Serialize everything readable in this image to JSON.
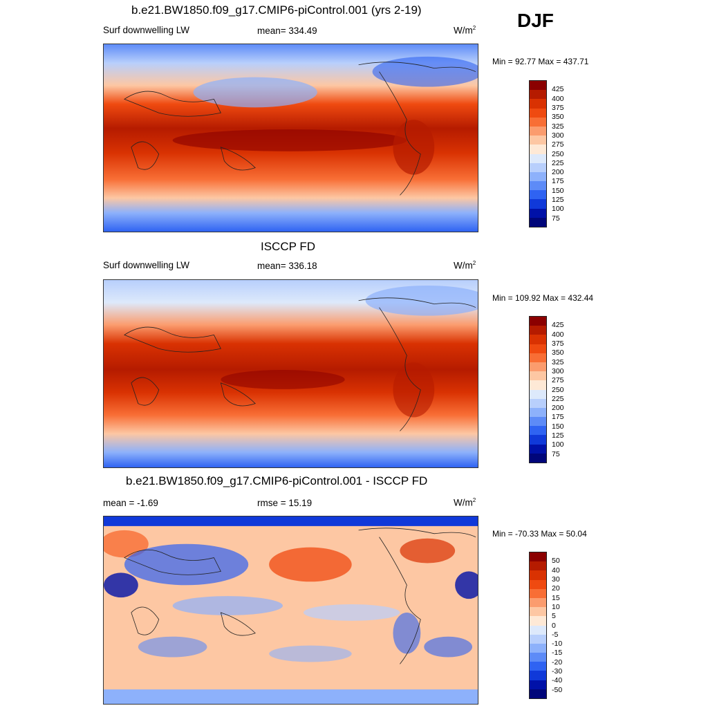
{
  "season": "DJF",
  "panels": [
    {
      "id": "model",
      "title": "b.e21.BW1850.f09_g17.CMIP6-piControl.001 (yrs 2-19)",
      "left_label": "Surf downwelling LW",
      "center_label": "mean= 334.49",
      "units": "W/m",
      "units_exp": "2",
      "minmax": "Min =  92.77 Max = 437.71",
      "colorbar": {
        "labels": [
          "425",
          "400",
          "375",
          "350",
          "325",
          "300",
          "275",
          "250",
          "225",
          "200",
          "175",
          "150",
          "125",
          "100",
          "75"
        ],
        "colors": [
          "#8b0000",
          "#b51b00",
          "#d93202",
          "#ef4a10",
          "#f86e35",
          "#fb9c6e",
          "#fdc7a3",
          "#fee9d6",
          "#dde9fb",
          "#b8cffc",
          "#8db1fb",
          "#5d8bf7",
          "#2f63f2",
          "#1039d9",
          "#0011a8",
          "#00067a"
        ]
      }
    },
    {
      "id": "obs",
      "title": "ISCCP FD",
      "left_label": "Surf downwelling LW",
      "center_label": "mean= 336.18",
      "units": "W/m",
      "units_exp": "2",
      "minmax": "Min = 109.92 Max = 432.44",
      "colorbar": {
        "labels": [
          "425",
          "400",
          "375",
          "350",
          "325",
          "300",
          "275",
          "250",
          "225",
          "200",
          "175",
          "150",
          "125",
          "100",
          "75"
        ],
        "colors": [
          "#8b0000",
          "#b51b00",
          "#d93202",
          "#ef4a10",
          "#f86e35",
          "#fb9c6e",
          "#fdc7a3",
          "#fee9d6",
          "#dde9fb",
          "#b8cffc",
          "#8db1fb",
          "#5d8bf7",
          "#2f63f2",
          "#1039d9",
          "#0011a8",
          "#00067a"
        ]
      }
    },
    {
      "id": "diff",
      "title": "b.e21.BW1850.f09_g17.CMIP6-piControl.001 - ISCCP FD",
      "left_label": "mean =  -1.69",
      "center_label": "rmse =  15.19",
      "units": "W/m",
      "units_exp": "2",
      "minmax": "Min = -70.33 Max =  50.04",
      "colorbar": {
        "labels": [
          "50",
          "40",
          "30",
          "20",
          "15",
          "10",
          "5",
          "0",
          "-5",
          "-10",
          "-15",
          "-20",
          "-30",
          "-40",
          "-50"
        ],
        "colors": [
          "#8b0000",
          "#b51b00",
          "#d93202",
          "#ef4a10",
          "#f86e35",
          "#fb9c6e",
          "#fdc7a3",
          "#fee9d6",
          "#dde9fb",
          "#b8cffc",
          "#8db1fb",
          "#5d8bf7",
          "#2f63f2",
          "#1039d9",
          "#0011a8",
          "#00067a"
        ]
      }
    }
  ]
}
